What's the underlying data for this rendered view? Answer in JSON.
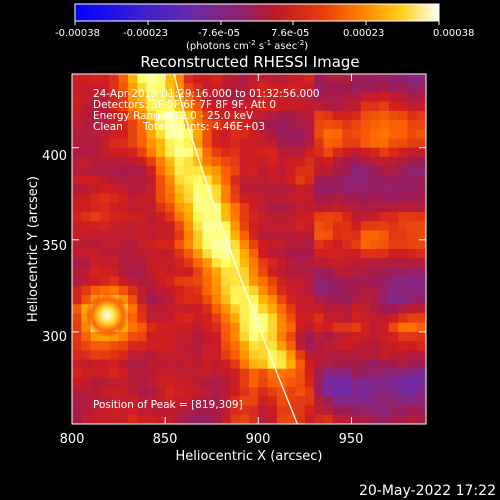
{
  "figure": {
    "title": "Reconstructed RHESSI Image",
    "footer_date": "20-May-2022 17:22"
  },
  "colorbar": {
    "ticks": [
      "-0.00038",
      "-0.00023",
      "-7.6e-05",
      "7.6e-05",
      "0.00023",
      "0.00038"
    ],
    "units_main": "(photons cm",
    "units_exp1": "-2",
    "units_mid": " s",
    "units_exp2": "-1",
    "units_end": " asec",
    "units_exp3": "-2",
    "units_close": ")"
  },
  "info": {
    "time_range": "24-Apr-2015 01:29:16.000 to 01:32:56.000",
    "detectors": "Detectors: 3F 5F 6F 7F 8F 9F, Att 0",
    "energy": "Energy Range: 12.0 - 25.0 keV",
    "algorithm": "Clean",
    "counts": "Total counts: 4.46E+03",
    "peak": "Position of Peak = [819,309]"
  },
  "chart_data": {
    "type": "heatmap",
    "title": "Reconstructed RHESSI Image",
    "xlabel": "Heliocentric X (arcsec)",
    "ylabel": "Heliocentric Y (arcsec)",
    "xlim": [
      800,
      990
    ],
    "ylim": [
      250,
      440
    ],
    "x_ticks": [
      800,
      850,
      900,
      950
    ],
    "x_tick_labels": [
      "800",
      "850",
      "900",
      "950"
    ],
    "y_ticks": [
      300,
      350,
      400
    ],
    "y_tick_labels": [
      "300",
      "350",
      "400"
    ],
    "color_range": [
      -0.00038,
      0.00038
    ],
    "colormap_stops": [
      "#0000ff",
      "#5522cc",
      "#7a2a9a",
      "#a01b50",
      "#d11e1e",
      "#ff6a00",
      "#ffb000",
      "#ffff66",
      "#ffffff"
    ],
    "peak_position": [
      819,
      309
    ],
    "limb_color": "#ffffff"
  }
}
